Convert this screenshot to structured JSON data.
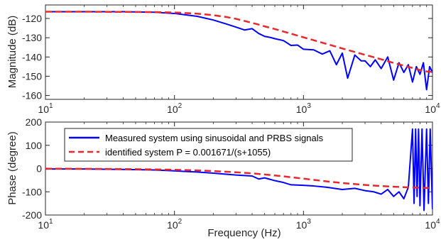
{
  "chart_data": [
    {
      "type": "line",
      "panel": "magnitude",
      "xscale": "log",
      "xlim": [
        10,
        10000
      ],
      "ylim": [
        -162,
        -113
      ],
      "ylabel": "Magnitude (dB)",
      "xlabel": "",
      "grid": false,
      "xticks": [
        10,
        100,
        1000,
        10000
      ],
      "yticks": [
        -160,
        -150,
        -140,
        -130,
        -120
      ],
      "series": [
        {
          "name": "Measured system using sinusoidal and PRBS signals",
          "color": "#0000ff",
          "style": "solid",
          "x": [
            10,
            20,
            40,
            70,
            100,
            150,
            200,
            250,
            300,
            350,
            400,
            450,
            500,
            550,
            600,
            700,
            800,
            900,
            1000,
            1200,
            1400,
            1600,
            1800,
            2000,
            2200,
            2500,
            2800,
            3000,
            3300,
            3600,
            4000,
            4500,
            5000,
            5500,
            6000,
            6500,
            7000,
            7500,
            8000,
            8500,
            9000,
            9500,
            10000
          ],
          "y": [
            -116.5,
            -116.5,
            -116.5,
            -116.8,
            -117.4,
            -118.9,
            -120.8,
            -122.8,
            -124.5,
            -126,
            -125.3,
            -127.8,
            -129.3,
            -129.8,
            -130.5,
            -131.5,
            -134,
            -133.8,
            -136,
            -136.3,
            -138.5,
            -136.8,
            -144,
            -138,
            -151,
            -139,
            -142,
            -142,
            -145,
            -141.5,
            -146,
            -140,
            -152,
            -143,
            -148,
            -144,
            -153,
            -145,
            -149,
            -143,
            -157,
            -145,
            -148
          ]
        },
        {
          "name": "identified system P = 0.001671/(s+1055)",
          "color": "#e8282b",
          "style": "dashed",
          "x": [
            10,
            20,
            40,
            70,
            100,
            150,
            200,
            250,
            300,
            350,
            400,
            450,
            500,
            600,
            700,
            800,
            900,
            1000,
            1200,
            1400,
            1600,
            1800,
            2000,
            2500,
            3000,
            3500,
            4000,
            4500,
            5000,
            6000,
            7000,
            8000,
            9000,
            10000
          ],
          "y": [
            -116.5,
            -116.5,
            -116.6,
            -116.7,
            -116.9,
            -117.5,
            -118.3,
            -119.2,
            -120.2,
            -121.3,
            -122.3,
            -123.2,
            -124.1,
            -125.5,
            -126.8,
            -127.9,
            -128.9,
            -129.8,
            -131.3,
            -132.6,
            -133.7,
            -134.7,
            -135.6,
            -137.4,
            -138.9,
            -140.1,
            -141.2,
            -142.2,
            -143.1,
            -144.5,
            -145.7,
            -146.8,
            -147.5,
            -147.8
          ]
        }
      ]
    },
    {
      "type": "line",
      "panel": "phase",
      "xscale": "log",
      "xlim": [
        10,
        10000
      ],
      "ylim": [
        -200,
        200
      ],
      "ylabel": "Phase (degree)",
      "xlabel": "Frequency (Hz)",
      "grid": false,
      "xticks": [
        10,
        100,
        1000,
        10000
      ],
      "yticks": [
        -200,
        -100,
        0,
        100,
        200
      ],
      "legend": "top-left",
      "series": [
        {
          "name": "Measured system using sinusoidal and PRBS signals",
          "color": "#0000ff",
          "style": "solid",
          "x": [
            10,
            20,
            40,
            70,
            100,
            150,
            200,
            300,
            400,
            450,
            500,
            600,
            700,
            800,
            1000,
            1200,
            1500,
            2000,
            2500,
            3000,
            3500,
            4000,
            4500,
            5000,
            5500,
            6000,
            6500,
            7000,
            7200,
            7400,
            7600,
            7800,
            8000,
            8300,
            8600,
            9000,
            9300,
            9600,
            10000
          ],
          "y": [
            -2,
            -2,
            -4,
            -6,
            -10,
            -15,
            -20,
            -28,
            -32,
            -45,
            -40,
            -52,
            -60,
            -70,
            -72,
            -75,
            -80,
            -90,
            -85,
            -95,
            -100,
            -110,
            -90,
            -120,
            -100,
            -130,
            -80,
            170,
            -150,
            170,
            -120,
            170,
            -160,
            170,
            -180,
            170,
            -150,
            170,
            -175
          ]
        },
        {
          "name": "identified system P = 0.001671/(s+1055)",
          "color": "#e8282b",
          "style": "dashed",
          "x": [
            10,
            20,
            40,
            70,
            100,
            150,
            200,
            300,
            400,
            500,
            700,
            1000,
            1500,
            2000,
            3000,
            4000,
            5000,
            6000,
            7000,
            8000,
            9000,
            10000
          ],
          "y": [
            -0.5,
            -1.1,
            -2.2,
            -3.8,
            -5.4,
            -8.1,
            -10.7,
            -15.9,
            -20.8,
            -25.4,
            -33.6,
            -43.5,
            -54.9,
            -62.2,
            -70.6,
            -75.2,
            -78.1,
            -80.0,
            -81.4,
            -82.5,
            -83.3,
            -84.0
          ]
        }
      ]
    }
  ],
  "legend": {
    "measured_label": "Measured system using sinusoidal and PRBS signals",
    "identified_label": "identified system P = 0.001671/(s+1055)"
  }
}
